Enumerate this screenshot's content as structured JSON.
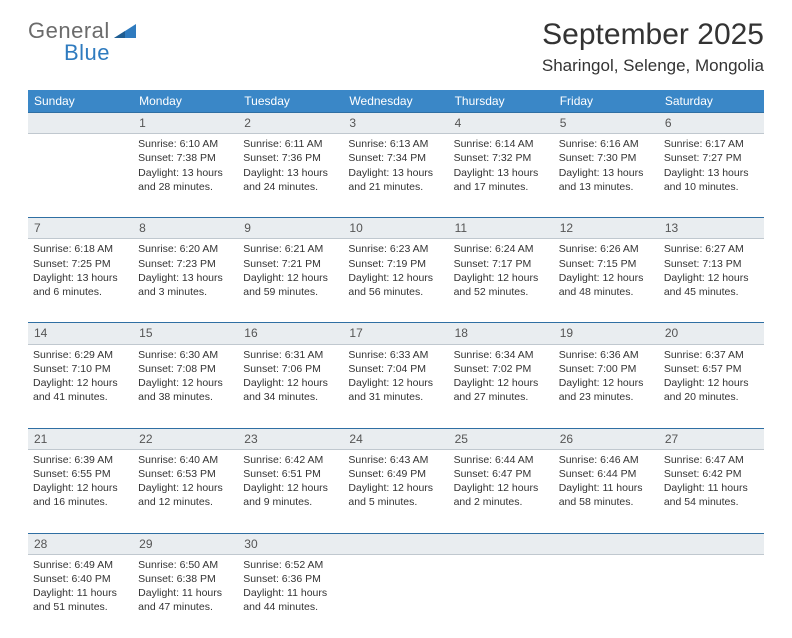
{
  "logo": {
    "text1": "General",
    "text2": "Blue"
  },
  "title": "September 2025",
  "location": "Sharingol, Selenge, Mongolia",
  "colors": {
    "header_bg": "#3a87c7",
    "header_text": "#ffffff",
    "daynum_bg": "#e9edf0",
    "daynum_border_top": "#2f6fa3",
    "logo_blue": "#2f7bbf",
    "logo_grey": "#6b6b6b"
  },
  "day_headers": [
    "Sunday",
    "Monday",
    "Tuesday",
    "Wednesday",
    "Thursday",
    "Friday",
    "Saturday"
  ],
  "weeks": [
    {
      "nums": [
        "",
        "1",
        "2",
        "3",
        "4",
        "5",
        "6"
      ],
      "cells": [
        {
          "sunrise": "",
          "sunset": "",
          "daylight": ""
        },
        {
          "sunrise": "6:10 AM",
          "sunset": "7:38 PM",
          "daylight": "13 hours and 28 minutes."
        },
        {
          "sunrise": "6:11 AM",
          "sunset": "7:36 PM",
          "daylight": "13 hours and 24 minutes."
        },
        {
          "sunrise": "6:13 AM",
          "sunset": "7:34 PM",
          "daylight": "13 hours and 21 minutes."
        },
        {
          "sunrise": "6:14 AM",
          "sunset": "7:32 PM",
          "daylight": "13 hours and 17 minutes."
        },
        {
          "sunrise": "6:16 AM",
          "sunset": "7:30 PM",
          "daylight": "13 hours and 13 minutes."
        },
        {
          "sunrise": "6:17 AM",
          "sunset": "7:27 PM",
          "daylight": "13 hours and 10 minutes."
        }
      ]
    },
    {
      "nums": [
        "7",
        "8",
        "9",
        "10",
        "11",
        "12",
        "13"
      ],
      "cells": [
        {
          "sunrise": "6:18 AM",
          "sunset": "7:25 PM",
          "daylight": "13 hours and 6 minutes."
        },
        {
          "sunrise": "6:20 AM",
          "sunset": "7:23 PM",
          "daylight": "13 hours and 3 minutes."
        },
        {
          "sunrise": "6:21 AM",
          "sunset": "7:21 PM",
          "daylight": "12 hours and 59 minutes."
        },
        {
          "sunrise": "6:23 AM",
          "sunset": "7:19 PM",
          "daylight": "12 hours and 56 minutes."
        },
        {
          "sunrise": "6:24 AM",
          "sunset": "7:17 PM",
          "daylight": "12 hours and 52 minutes."
        },
        {
          "sunrise": "6:26 AM",
          "sunset": "7:15 PM",
          "daylight": "12 hours and 48 minutes."
        },
        {
          "sunrise": "6:27 AM",
          "sunset": "7:13 PM",
          "daylight": "12 hours and 45 minutes."
        }
      ]
    },
    {
      "nums": [
        "14",
        "15",
        "16",
        "17",
        "18",
        "19",
        "20"
      ],
      "cells": [
        {
          "sunrise": "6:29 AM",
          "sunset": "7:10 PM",
          "daylight": "12 hours and 41 minutes."
        },
        {
          "sunrise": "6:30 AM",
          "sunset": "7:08 PM",
          "daylight": "12 hours and 38 minutes."
        },
        {
          "sunrise": "6:31 AM",
          "sunset": "7:06 PM",
          "daylight": "12 hours and 34 minutes."
        },
        {
          "sunrise": "6:33 AM",
          "sunset": "7:04 PM",
          "daylight": "12 hours and 31 minutes."
        },
        {
          "sunrise": "6:34 AM",
          "sunset": "7:02 PM",
          "daylight": "12 hours and 27 minutes."
        },
        {
          "sunrise": "6:36 AM",
          "sunset": "7:00 PM",
          "daylight": "12 hours and 23 minutes."
        },
        {
          "sunrise": "6:37 AM",
          "sunset": "6:57 PM",
          "daylight": "12 hours and 20 minutes."
        }
      ]
    },
    {
      "nums": [
        "21",
        "22",
        "23",
        "24",
        "25",
        "26",
        "27"
      ],
      "cells": [
        {
          "sunrise": "6:39 AM",
          "sunset": "6:55 PM",
          "daylight": "12 hours and 16 minutes."
        },
        {
          "sunrise": "6:40 AM",
          "sunset": "6:53 PM",
          "daylight": "12 hours and 12 minutes."
        },
        {
          "sunrise": "6:42 AM",
          "sunset": "6:51 PM",
          "daylight": "12 hours and 9 minutes."
        },
        {
          "sunrise": "6:43 AM",
          "sunset": "6:49 PM",
          "daylight": "12 hours and 5 minutes."
        },
        {
          "sunrise": "6:44 AM",
          "sunset": "6:47 PM",
          "daylight": "12 hours and 2 minutes."
        },
        {
          "sunrise": "6:46 AM",
          "sunset": "6:44 PM",
          "daylight": "11 hours and 58 minutes."
        },
        {
          "sunrise": "6:47 AM",
          "sunset": "6:42 PM",
          "daylight": "11 hours and 54 minutes."
        }
      ]
    },
    {
      "nums": [
        "28",
        "29",
        "30",
        "",
        "",
        "",
        ""
      ],
      "cells": [
        {
          "sunrise": "6:49 AM",
          "sunset": "6:40 PM",
          "daylight": "11 hours and 51 minutes."
        },
        {
          "sunrise": "6:50 AM",
          "sunset": "6:38 PM",
          "daylight": "11 hours and 47 minutes."
        },
        {
          "sunrise": "6:52 AM",
          "sunset": "6:36 PM",
          "daylight": "11 hours and 44 minutes."
        },
        {
          "sunrise": "",
          "sunset": "",
          "daylight": ""
        },
        {
          "sunrise": "",
          "sunset": "",
          "daylight": ""
        },
        {
          "sunrise": "",
          "sunset": "",
          "daylight": ""
        },
        {
          "sunrise": "",
          "sunset": "",
          "daylight": ""
        }
      ]
    }
  ],
  "labels": {
    "sunrise": "Sunrise:",
    "sunset": "Sunset:",
    "daylight": "Daylight:"
  }
}
